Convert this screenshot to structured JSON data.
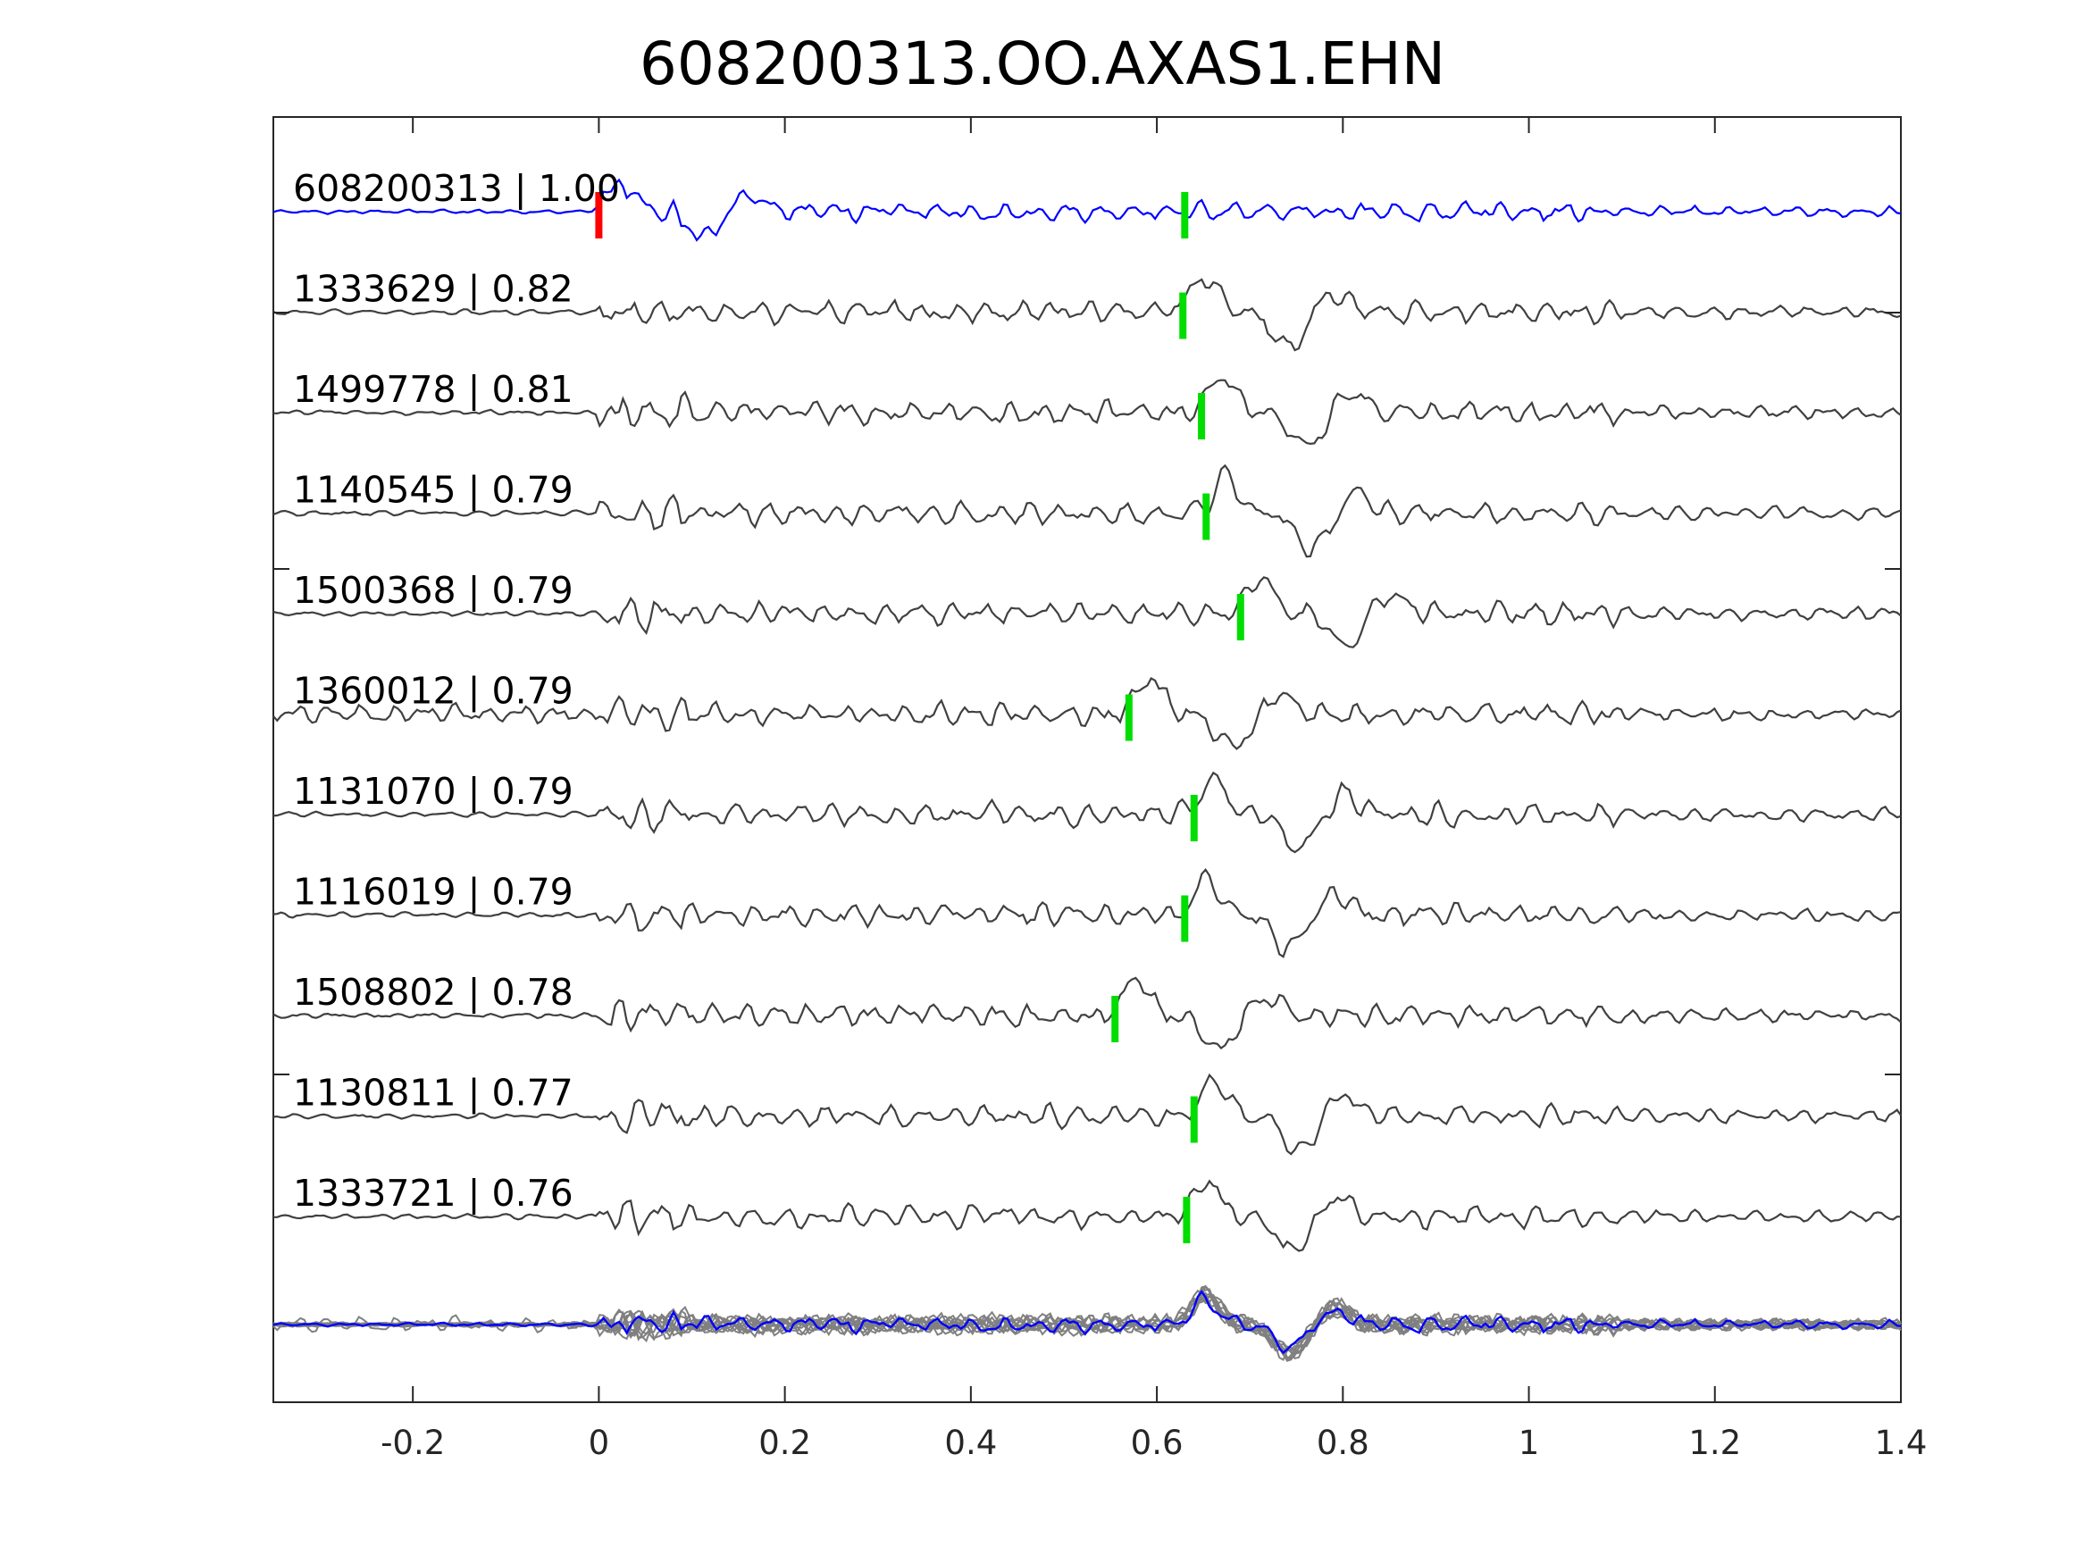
{
  "chart_data": {
    "type": "line",
    "title": "608200313.OO.AXAS1.EHN",
    "xlabel": "",
    "ylabel": "",
    "xlim": [
      -0.35,
      1.4
    ],
    "xticks": [
      -0.2,
      0,
      0.2,
      0.4,
      0.6,
      0.8,
      1,
      1.2,
      1.4
    ],
    "xtick_labels": [
      "-0.2",
      "0",
      "0.2",
      "0.4",
      "0.6",
      "0.8",
      "1",
      "1.2",
      "1.4"
    ],
    "grid": false,
    "colors": {
      "template": "#0000ff",
      "trace": "#404040",
      "overlay": "#808080",
      "template_pick": "#ff0000",
      "pick": "#00dd00"
    },
    "traces": [
      {
        "label": "608200313 | 1.00",
        "id": "608200313",
        "cc": 1.0,
        "pick": 0.0,
        "template": true
      },
      {
        "label": "1333629 | 0.82",
        "id": "1333629",
        "cc": 0.82,
        "pick": 0.628
      },
      {
        "label": "1499778 | 0.81",
        "id": "1499778",
        "cc": 0.81,
        "pick": 0.648
      },
      {
        "label": "1140545 | 0.79",
        "id": "1140545",
        "cc": 0.79,
        "pick": 0.653
      },
      {
        "label": "1500368 | 0.79",
        "id": "1500368",
        "cc": 0.79,
        "pick": 0.69
      },
      {
        "label": "1360012 | 0.79",
        "id": "1360012",
        "cc": 0.79,
        "pick": 0.57
      },
      {
        "label": "1131070 | 0.79",
        "id": "1131070",
        "cc": 0.79,
        "pick": 0.64
      },
      {
        "label": "1116019 | 0.79",
        "id": "1116019",
        "cc": 0.79,
        "pick": 0.63
      },
      {
        "label": "1508802 | 0.78",
        "id": "1508802",
        "cc": 0.78,
        "pick": 0.555
      },
      {
        "label": "1130811 | 0.77",
        "id": "1130811",
        "cc": 0.77,
        "pick": 0.64
      },
      {
        "label": "1333721 | 0.76",
        "id": "1333721",
        "cc": 0.76,
        "pick": 0.632
      }
    ],
    "template_pick_time": 0.0,
    "main_pick_time": 0.63,
    "overlay_panel": true
  }
}
